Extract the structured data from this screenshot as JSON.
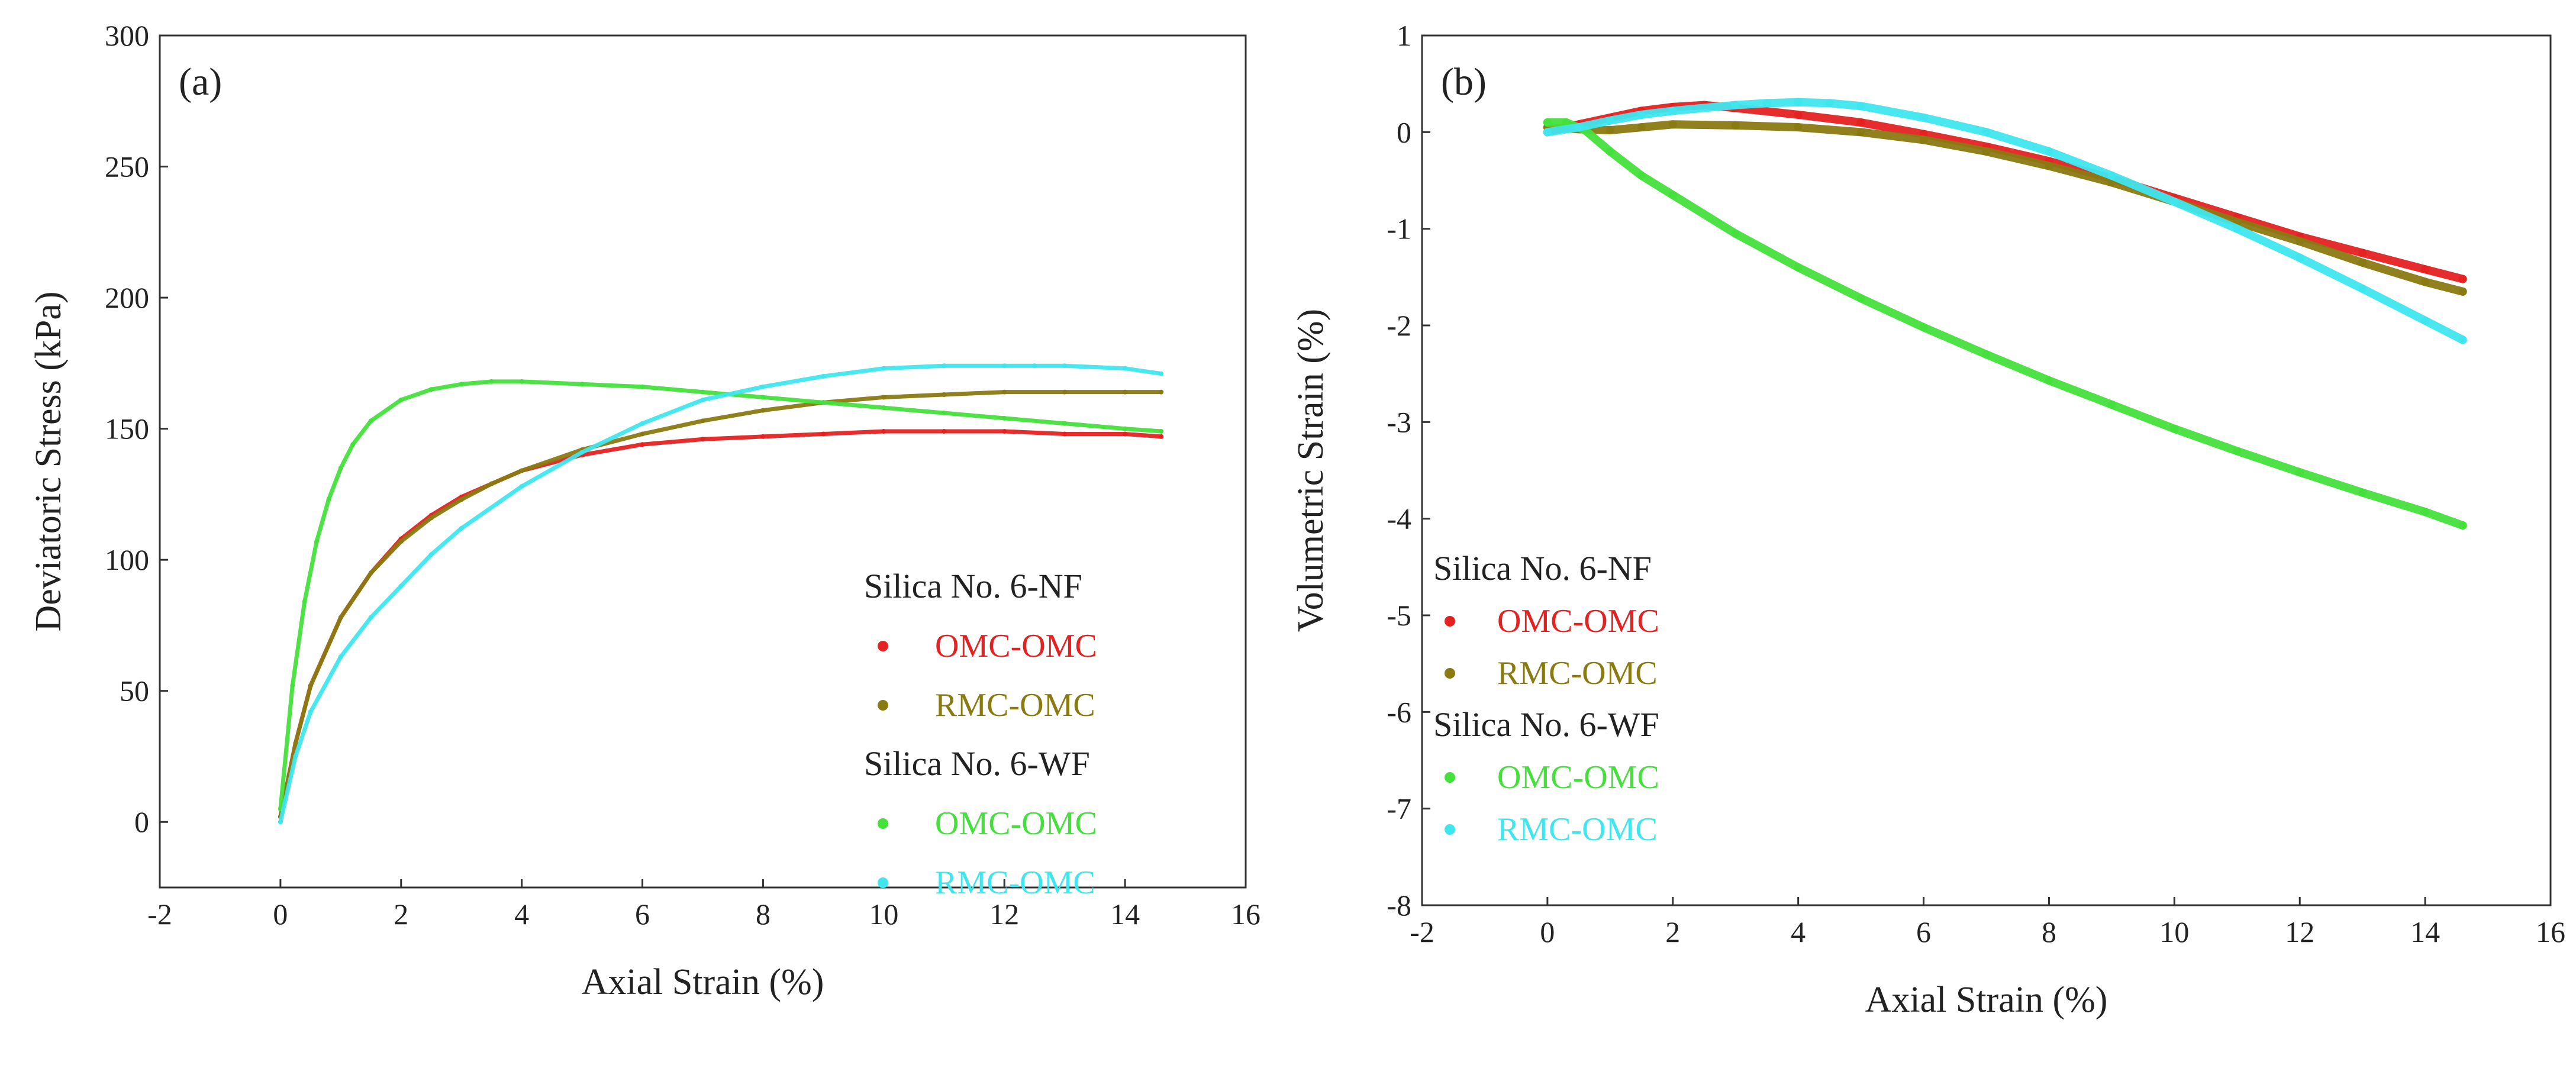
{
  "chart_data": [
    {
      "type": "scatter",
      "panel_label": "(a)",
      "xlabel": "Axial Strain (%)",
      "ylabel": "Deviatoric Stress (kPa)",
      "xlim": [
        -2,
        16
      ],
      "ylim": [
        -25,
        300
      ],
      "xticks": [
        -2,
        0,
        2,
        4,
        6,
        8,
        10,
        12,
        14,
        16
      ],
      "yticks": [
        0,
        50,
        100,
        150,
        200,
        250,
        300
      ],
      "grid": false,
      "legend_placement": "bottom-right",
      "legend_groups": [
        {
          "title": "Silica No. 6-NF",
          "series_index": [
            0,
            1
          ]
        },
        {
          "title": "Silica No. 6-WF",
          "series_index": [
            2,
            3
          ]
        }
      ],
      "series": [
        {
          "name": "OMC-OMC",
          "color": "#e52222",
          "x": [
            0,
            0.25,
            0.5,
            1,
            1.5,
            2,
            2.5,
            3,
            3.5,
            4,
            5,
            6,
            7,
            8,
            9,
            10,
            11,
            12,
            13,
            14,
            14.6
          ],
          "y": [
            2,
            30,
            52,
            78,
            95,
            108,
            117,
            124,
            129,
            134,
            140,
            144,
            146,
            147,
            148,
            149,
            149,
            149,
            148,
            148,
            147
          ]
        },
        {
          "name": "RMC-OMC",
          "color": "#8a7a12",
          "x": [
            0,
            0.25,
            0.5,
            1,
            1.5,
            2,
            2.5,
            3,
            3.5,
            4,
            5,
            6,
            7,
            8,
            9,
            10,
            11,
            12,
            13,
            14,
            14.6
          ],
          "y": [
            2,
            30,
            52,
            78,
            95,
            107,
            116,
            123,
            129,
            134,
            142,
            148,
            153,
            157,
            160,
            162,
            163,
            164,
            164,
            164,
            164
          ]
        },
        {
          "name": "OMC-OMC",
          "color": "#44e03c",
          "x": [
            0,
            0.2,
            0.4,
            0.6,
            0.8,
            1,
            1.2,
            1.5,
            2,
            2.5,
            3,
            3.5,
            4,
            5,
            6,
            7,
            8,
            9,
            10,
            11,
            12,
            13,
            14,
            14.6
          ],
          "y": [
            5,
            52,
            84,
            107,
            123,
            135,
            144,
            153,
            161,
            165,
            167,
            168,
            168,
            167,
            166,
            164,
            162,
            160,
            158,
            156,
            154,
            152,
            150,
            149
          ]
        },
        {
          "name": "RMC-OMC",
          "color": "#3fe6ee",
          "x": [
            0,
            0.25,
            0.5,
            1,
            1.5,
            2,
            2.5,
            3,
            4,
            5,
            6,
            7,
            8,
            9,
            10,
            11,
            12,
            12.5,
            13,
            14,
            14.6
          ],
          "y": [
            0,
            25,
            42,
            63,
            78,
            90,
            102,
            112,
            128,
            141,
            152,
            161,
            166,
            170,
            173,
            174,
            174,
            174,
            174,
            173,
            171
          ]
        }
      ]
    },
    {
      "type": "scatter",
      "panel_label": "(b)",
      "xlabel": "Axial Strain (%)",
      "ylabel": "Volumetric Strain (%)",
      "xlim": [
        -2,
        16
      ],
      "ylim": [
        -8,
        1
      ],
      "xticks": [
        -2,
        0,
        2,
        4,
        6,
        8,
        10,
        12,
        14,
        16
      ],
      "yticks": [
        -8,
        -7,
        -6,
        -5,
        -4,
        -3,
        -2,
        -1,
        0,
        1
      ],
      "grid": false,
      "legend_placement": "left-middle",
      "legend_groups": [
        {
          "title": "Silica No. 6-NF",
          "series_index": [
            0,
            1
          ]
        },
        {
          "title": "Silica No. 6-WF",
          "series_index": [
            2,
            3
          ]
        }
      ],
      "series": [
        {
          "name": "OMC-OMC",
          "color": "#e52222",
          "x": [
            0,
            0.5,
            1,
            1.5,
            2,
            2.5,
            3,
            4,
            5,
            6,
            7,
            8,
            9,
            10,
            11,
            12,
            13,
            14,
            14.6
          ],
          "y": [
            0,
            0.08,
            0.15,
            0.22,
            0.26,
            0.28,
            0.25,
            0.18,
            0.1,
            -0.02,
            -0.15,
            -0.3,
            -0.48,
            -0.68,
            -0.88,
            -1.08,
            -1.25,
            -1.42,
            -1.52
          ]
        },
        {
          "name": "RMC-OMC",
          "color": "#8a7a12",
          "x": [
            0,
            0.5,
            1,
            1.5,
            2,
            3,
            4,
            5,
            6,
            7,
            8,
            9,
            10,
            11,
            12,
            13,
            14,
            14.6
          ],
          "y": [
            0.05,
            0.03,
            0.02,
            0.05,
            0.08,
            0.07,
            0.05,
            0.0,
            -0.08,
            -0.2,
            -0.35,
            -0.52,
            -0.72,
            -0.93,
            -1.13,
            -1.35,
            -1.55,
            -1.65
          ]
        },
        {
          "name": "OMC-OMC",
          "color": "#44e03c",
          "x": [
            0,
            0.3,
            0.6,
            1,
            1.5,
            2,
            3,
            4,
            5,
            6,
            7,
            8,
            9,
            10,
            11,
            12,
            13,
            14,
            14.6
          ],
          "y": [
            0.1,
            0.1,
            0.02,
            -0.2,
            -0.45,
            -0.65,
            -1.05,
            -1.4,
            -1.72,
            -2.02,
            -2.3,
            -2.57,
            -2.82,
            -3.07,
            -3.3,
            -3.52,
            -3.73,
            -3.93,
            -4.07
          ]
        },
        {
          "name": "RMC-OMC",
          "color": "#3fe6ee",
          "x": [
            0,
            0.5,
            1,
            1.5,
            2,
            3,
            3.5,
            4,
            4.5,
            5,
            6,
            7,
            8,
            9,
            10,
            11,
            12,
            13,
            14,
            14.6
          ],
          "y": [
            0,
            0.05,
            0.12,
            0.18,
            0.22,
            0.28,
            0.3,
            0.31,
            0.3,
            0.27,
            0.15,
            0.0,
            -0.2,
            -0.45,
            -0.72,
            -1.0,
            -1.3,
            -1.62,
            -1.95,
            -2.15
          ]
        }
      ]
    }
  ]
}
